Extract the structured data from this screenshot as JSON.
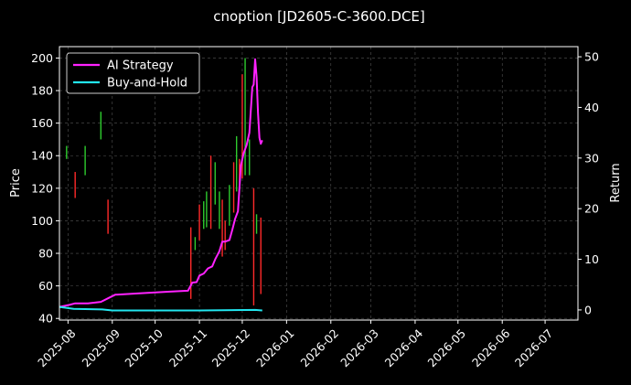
{
  "chart_data": {
    "type": "line",
    "title": "cnoption [JD2605-C-3600.DCE]",
    "ylabel": "Price",
    "y2label": "Return",
    "xlabel": "",
    "x_ticks": [
      "2025-08",
      "2025-09",
      "2025-10",
      "2025-11",
      "2025-12",
      "2026-01",
      "2026-02",
      "2026-03",
      "2026-04",
      "2026-05",
      "2026-06",
      "2026-07"
    ],
    "xlim": [
      "2025-07-26",
      "2026-07-24"
    ],
    "ylim": [
      39,
      207
    ],
    "y_ticks": [
      40,
      60,
      80,
      100,
      120,
      140,
      160,
      180,
      200
    ],
    "y2lim": [
      -2,
      52
    ],
    "y2_ticks": [
      0,
      10,
      20,
      30,
      40,
      50
    ],
    "grid": true,
    "legend_position": "top-left",
    "background": "#000000",
    "colors": {
      "up": "#2ecc2e",
      "down": "#ff2a2a",
      "ai_strategy": "#ff22ff",
      "buy_and_hold": "#22e5ee",
      "grid": "#555555"
    },
    "candles": [
      {
        "date": "2025-07-31",
        "low": 138,
        "high": 146,
        "up": true
      },
      {
        "date": "2025-08-06",
        "low": 114,
        "high": 130,
        "up": false
      },
      {
        "date": "2025-08-13",
        "low": 128,
        "high": 146,
        "up": true
      },
      {
        "date": "2025-08-24",
        "low": 150,
        "high": 167,
        "up": true
      },
      {
        "date": "2025-08-29",
        "low": 92,
        "high": 113,
        "up": false
      },
      {
        "date": "2025-10-26",
        "low": 52,
        "high": 96,
        "up": false
      },
      {
        "date": "2025-10-29",
        "low": 82,
        "high": 90,
        "up": true
      },
      {
        "date": "2025-11-01",
        "low": 88,
        "high": 110,
        "up": false
      },
      {
        "date": "2025-11-04",
        "low": 95,
        "high": 112,
        "up": true
      },
      {
        "date": "2025-11-06",
        "low": 96,
        "high": 118,
        "up": true
      },
      {
        "date": "2025-11-09",
        "low": 95,
        "high": 140,
        "up": false
      },
      {
        "date": "2025-11-12",
        "low": 110,
        "high": 136,
        "up": true
      },
      {
        "date": "2025-11-15",
        "low": 95,
        "high": 118,
        "up": true
      },
      {
        "date": "2025-11-17",
        "low": 78,
        "high": 113,
        "up": false
      },
      {
        "date": "2025-11-19",
        "low": 82,
        "high": 100,
        "up": false
      },
      {
        "date": "2025-11-22",
        "low": 97,
        "high": 122,
        "up": true
      },
      {
        "date": "2025-11-25",
        "low": 105,
        "high": 136,
        "up": false
      },
      {
        "date": "2025-11-27",
        "low": 118,
        "high": 152,
        "up": true
      },
      {
        "date": "2025-11-29",
        "low": 120,
        "high": 138,
        "up": false
      },
      {
        "date": "2025-12-01",
        "low": 126,
        "high": 190,
        "up": false
      },
      {
        "date": "2025-12-03",
        "low": 128,
        "high": 200,
        "up": true
      },
      {
        "date": "2025-12-06",
        "low": 128,
        "high": 150,
        "up": true
      },
      {
        "date": "2025-12-09",
        "low": 48,
        "high": 120,
        "up": false
      },
      {
        "date": "2025-12-11",
        "low": 92,
        "high": 104,
        "up": true
      },
      {
        "date": "2025-12-14",
        "low": 55,
        "high": 102,
        "up": false
      }
    ],
    "series": [
      {
        "name": "AI Strategy",
        "axis": "right",
        "points": [
          [
            "2025-07-26",
            0.6
          ],
          [
            "2025-08-02",
            1.0
          ],
          [
            "2025-08-06",
            1.3
          ],
          [
            "2025-08-15",
            1.3
          ],
          [
            "2025-08-24",
            1.6
          ],
          [
            "2025-08-29",
            2.3
          ],
          [
            "2025-09-03",
            3.0
          ],
          [
            "2025-09-20",
            3.3
          ],
          [
            "2025-10-10",
            3.6
          ],
          [
            "2025-10-24",
            3.8
          ],
          [
            "2025-10-27",
            5.4
          ],
          [
            "2025-10-30",
            5.5
          ],
          [
            "2025-11-01",
            6.8
          ],
          [
            "2025-11-04",
            7.2
          ],
          [
            "2025-11-07",
            8.2
          ],
          [
            "2025-11-10",
            8.6
          ],
          [
            "2025-11-12",
            10.0
          ],
          [
            "2025-11-15",
            11.6
          ],
          [
            "2025-11-17",
            13.5
          ],
          [
            "2025-11-19",
            13.5
          ],
          [
            "2025-11-22",
            13.8
          ],
          [
            "2025-11-24",
            15.8
          ],
          [
            "2025-11-26",
            18.0
          ],
          [
            "2025-11-28",
            19.5
          ],
          [
            "2025-11-30",
            28.5
          ],
          [
            "2025-12-02",
            31.0
          ],
          [
            "2025-12-04",
            32.5
          ],
          [
            "2025-12-06",
            35.0
          ],
          [
            "2025-12-08",
            44.0
          ],
          [
            "2025-12-09",
            44.5
          ],
          [
            "2025-12-10",
            49.5
          ],
          [
            "2025-12-11",
            46.0
          ],
          [
            "2025-12-12",
            39.0
          ],
          [
            "2025-12-13",
            34.0
          ],
          [
            "2025-12-14",
            32.8
          ],
          [
            "2025-12-15",
            33.5
          ]
        ]
      },
      {
        "name": "Buy-and-Hold",
        "axis": "right",
        "points": [
          [
            "2025-07-26",
            0.6
          ],
          [
            "2025-08-05",
            0.2
          ],
          [
            "2025-08-25",
            0.1
          ],
          [
            "2025-09-01",
            -0.1
          ],
          [
            "2025-11-01",
            -0.1
          ],
          [
            "2025-12-10",
            0.0
          ],
          [
            "2025-12-15",
            -0.1
          ]
        ]
      }
    ]
  }
}
